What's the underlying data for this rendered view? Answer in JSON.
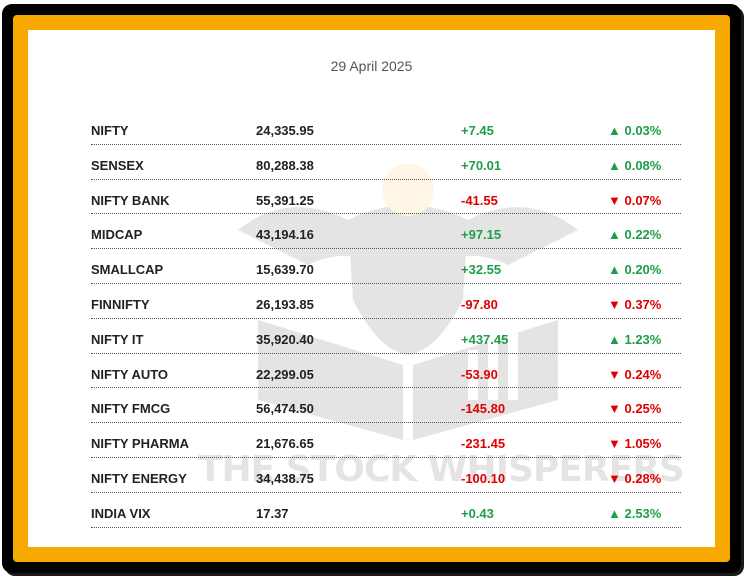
{
  "date": "29 April 2025",
  "watermark": "THE STOCK WHISPERERS",
  "colors": {
    "frame": "#000000",
    "border_accent": "#f7a900",
    "up": "#1e9e4a",
    "down": "#e00000"
  },
  "indices": [
    {
      "name": "NIFTY",
      "value": "24,335.95",
      "change": "+7.45",
      "pct": "▲ 0.03%",
      "direction": "up"
    },
    {
      "name": "SENSEX",
      "value": "80,288.38",
      "change": "+70.01",
      "pct": "▲ 0.08%",
      "direction": "up"
    },
    {
      "name": "NIFTY BANK",
      "value": "55,391.25",
      "change": "-41.55",
      "pct": "▼ 0.07%",
      "direction": "down"
    },
    {
      "name": "MIDCAP",
      "value": "43,194.16",
      "change": "+97.15",
      "pct": "▲ 0.22%",
      "direction": "up"
    },
    {
      "name": "SMALLCAP",
      "value": "15,639.70",
      "change": "+32.55",
      "pct": "▲ 0.20%",
      "direction": "up"
    },
    {
      "name": "FINNIFTY",
      "value": "26,193.85",
      "change": "-97.80",
      "pct": "▼ 0.37%",
      "direction": "down"
    },
    {
      "name": "NIFTY IT",
      "value": "35,920.40",
      "change": "+437.45",
      "pct": "▲ 1.23%",
      "direction": "up"
    },
    {
      "name": "NIFTY AUTO",
      "value": "22,299.05",
      "change": "-53.90",
      "pct": "▼ 0.24%",
      "direction": "down"
    },
    {
      "name": "NIFTY FMCG",
      "value": "56,474.50",
      "change": "-145.80",
      "pct": "▼ 0.25%",
      "direction": "down"
    },
    {
      "name": "NIFTY PHARMA",
      "value": "21,676.65",
      "change": "-231.45",
      "pct": "▼ 1.05%",
      "direction": "down"
    },
    {
      "name": "NIFTY ENERGY",
      "value": "34,438.75",
      "change": "-100.10",
      "pct": "▼ 0.28%",
      "direction": "down"
    },
    {
      "name": "INDIA VIX",
      "value": "17.37",
      "change": "+0.43",
      "pct": "▲ 2.53%",
      "direction": "up"
    }
  ]
}
